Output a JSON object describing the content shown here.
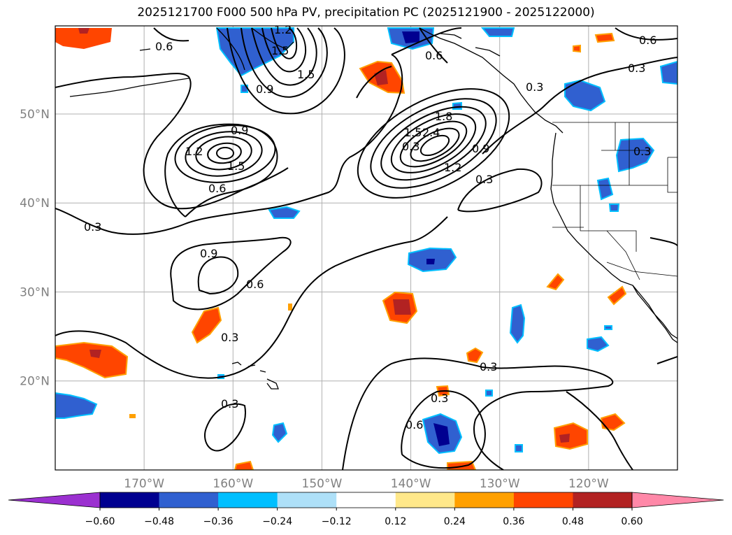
{
  "title": "2025121700 F000 500 hPa PV, precipitation PC (2025121900 - 2025122000)",
  "lat_labels": [
    {
      "lat": 50,
      "text": "50°N"
    },
    {
      "lat": 40,
      "text": "40°N"
    },
    {
      "lat": 30,
      "text": "30°N"
    },
    {
      "lat": 20,
      "text": "20°N"
    }
  ],
  "lon_labels": [
    {
      "lon": -170,
      "text": "170°W"
    },
    {
      "lon": -160,
      "text": "160°W"
    },
    {
      "lon": -150,
      "text": "150°W"
    },
    {
      "lon": -140,
      "text": "140°W"
    },
    {
      "lon": -130,
      "text": "130°W"
    },
    {
      "lon": -120,
      "text": "120°W"
    }
  ],
  "contour_labels": [
    "0.6",
    "0.6",
    "0.3",
    "0.9",
    "1.5",
    "1.2",
    "0.9",
    "1.5",
    "0.6",
    "0.3",
    "0.9",
    "0.6",
    "0.3",
    "0.3",
    "1.8",
    "1.5",
    "2.4",
    "1.2",
    "0.9",
    "0.3",
    "0.3",
    "0.3",
    "0.6",
    "0.3",
    "0.6",
    "0.3",
    "0.3",
    "1.2",
    "1.5"
  ],
  "colorbar": {
    "colors": [
      "#9b30d0",
      "#000090",
      "#3060d0",
      "#00bfff",
      "#aee0f8",
      "#ffffff",
      "#ffe88a",
      "#ffa000",
      "#ff4500",
      "#b22222",
      "#ff88a8"
    ],
    "ticks": [
      "−0.60",
      "−0.48",
      "−0.36",
      "−0.24",
      "−0.12",
      "0.12",
      "0.24",
      "0.36",
      "0.48",
      "0.60"
    ]
  }
}
